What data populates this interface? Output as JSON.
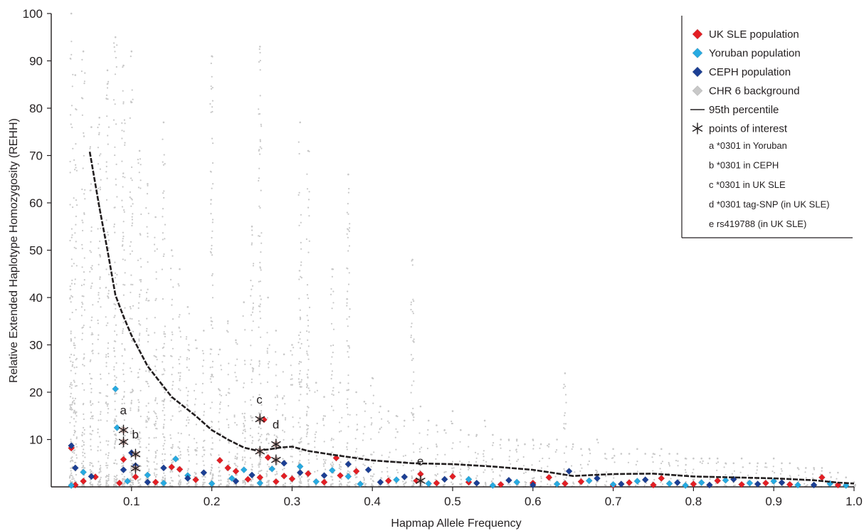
{
  "chart_data": {
    "type": "scatter",
    "title": "",
    "xlabel": "Hapmap Allele Frequency",
    "ylabel": "Relative Extended Haplotype Homozygosity (REHH)",
    "xlim": [
      0,
      1.0
    ],
    "ylim": [
      0,
      100
    ],
    "x_ticks": [
      "0.1",
      "0.2",
      "0.3",
      "0.4",
      "0.5",
      "0.6",
      "0.7",
      "0.8",
      "0.9",
      "1.0"
    ],
    "y_ticks": [
      "10",
      "20",
      "30",
      "40",
      "50",
      "60",
      "70",
      "80",
      "90",
      "100"
    ],
    "grid": false,
    "legend_position": "top-right",
    "legend": [
      {
        "label": "UK SLE population",
        "marker": "diamond",
        "color": "#e31e24"
      },
      {
        "label": "Yoruban population",
        "marker": "diamond",
        "color": "#27aae1"
      },
      {
        "label": "CEPH population",
        "marker": "diamond",
        "color": "#1c3f94"
      },
      {
        "label": "CHR 6 background",
        "marker": "diamond",
        "color": "#c8c8c8"
      },
      {
        "label": "95th percentile",
        "marker": "line",
        "color": "#231f20"
      },
      {
        "label": "points of interest",
        "marker": "asterisk",
        "color": "#231f20"
      }
    ],
    "legend_notes": [
      "a  *0301 in Yoruban",
      "b  *0301 in CEPH",
      "c  *0301 in UK SLE",
      "d  *0301 tag-SNP (in UK SLE)",
      "e  rs419788 (in UK SLE)"
    ],
    "series": [
      {
        "name": "95th percentile",
        "type": "line",
        "color": "#231f20",
        "points": [
          [
            0.048,
            70.8
          ],
          [
            0.06,
            59
          ],
          [
            0.07,
            50
          ],
          [
            0.08,
            40.5
          ],
          [
            0.09,
            36
          ],
          [
            0.1,
            32
          ],
          [
            0.12,
            25.5
          ],
          [
            0.15,
            19
          ],
          [
            0.18,
            15
          ],
          [
            0.2,
            12
          ],
          [
            0.22,
            10
          ],
          [
            0.24,
            8.3
          ],
          [
            0.255,
            7.7
          ],
          [
            0.27,
            7.9
          ],
          [
            0.285,
            8.3
          ],
          [
            0.3,
            8.5
          ],
          [
            0.32,
            7.6
          ],
          [
            0.35,
            6.8
          ],
          [
            0.4,
            5.6
          ],
          [
            0.45,
            5.0
          ],
          [
            0.5,
            4.8
          ],
          [
            0.55,
            4.3
          ],
          [
            0.6,
            3.6
          ],
          [
            0.62,
            3.1
          ],
          [
            0.65,
            2.3
          ],
          [
            0.7,
            2.7
          ],
          [
            0.75,
            2.8
          ],
          [
            0.8,
            2.2
          ],
          [
            0.85,
            2.0
          ],
          [
            0.9,
            1.8
          ],
          [
            0.95,
            1.4
          ],
          [
            0.98,
            0.9
          ],
          [
            1.0,
            0.7
          ]
        ]
      },
      {
        "name": "UK SLE population",
        "type": "scatter",
        "color": "#e31e24",
        "points": [
          [
            0.025,
            8.2
          ],
          [
            0.03,
            0.4
          ],
          [
            0.04,
            1.2
          ],
          [
            0.055,
            2.1
          ],
          [
            0.085,
            0.8
          ],
          [
            0.09,
            5.8
          ],
          [
            0.105,
            2.1
          ],
          [
            0.13,
            1.0
          ],
          [
            0.15,
            4.2
          ],
          [
            0.16,
            3.7
          ],
          [
            0.18,
            1.5
          ],
          [
            0.21,
            5.6
          ],
          [
            0.22,
            4.0
          ],
          [
            0.23,
            3.3
          ],
          [
            0.245,
            1.6
          ],
          [
            0.26,
            2.0
          ],
          [
            0.265,
            14.2
          ],
          [
            0.27,
            6.2
          ],
          [
            0.28,
            1.1
          ],
          [
            0.29,
            2.3
          ],
          [
            0.3,
            1.7
          ],
          [
            0.32,
            2.8
          ],
          [
            0.34,
            1.0
          ],
          [
            0.355,
            6.1
          ],
          [
            0.36,
            2.4
          ],
          [
            0.38,
            3.3
          ],
          [
            0.42,
            1.3
          ],
          [
            0.455,
            1.3
          ],
          [
            0.46,
            2.7
          ],
          [
            0.48,
            0.8
          ],
          [
            0.5,
            2.2
          ],
          [
            0.52,
            1.0
          ],
          [
            0.56,
            0.5
          ],
          [
            0.6,
            0.8
          ],
          [
            0.62,
            2.0
          ],
          [
            0.64,
            0.7
          ],
          [
            0.66,
            1.1
          ],
          [
            0.7,
            0.3
          ],
          [
            0.72,
            0.9
          ],
          [
            0.75,
            0.4
          ],
          [
            0.76,
            1.8
          ],
          [
            0.8,
            0.6
          ],
          [
            0.83,
            1.3
          ],
          [
            0.86,
            0.5
          ],
          [
            0.89,
            0.8
          ],
          [
            0.92,
            0.5
          ],
          [
            0.96,
            2.0
          ],
          [
            0.98,
            0.4
          ]
        ]
      },
      {
        "name": "Yoruban population",
        "type": "scatter",
        "color": "#27aae1",
        "points": [
          [
            0.025,
            0.3
          ],
          [
            0.04,
            3.1
          ],
          [
            0.08,
            20.7
          ],
          [
            0.082,
            12.5
          ],
          [
            0.095,
            1.2
          ],
          [
            0.12,
            2.5
          ],
          [
            0.14,
            0.8
          ],
          [
            0.155,
            5.9
          ],
          [
            0.17,
            2.4
          ],
          [
            0.2,
            0.7
          ],
          [
            0.225,
            1.8
          ],
          [
            0.24,
            3.6
          ],
          [
            0.26,
            0.8
          ],
          [
            0.275,
            3.8
          ],
          [
            0.31,
            4.3
          ],
          [
            0.33,
            1.1
          ],
          [
            0.35,
            3.5
          ],
          [
            0.37,
            2.2
          ],
          [
            0.385,
            0.6
          ],
          [
            0.43,
            1.5
          ],
          [
            0.47,
            0.7
          ],
          [
            0.52,
            1.6
          ],
          [
            0.55,
            0.3
          ],
          [
            0.58,
            1.0
          ],
          [
            0.63,
            0.6
          ],
          [
            0.67,
            1.3
          ],
          [
            0.7,
            0.5
          ],
          [
            0.73,
            1.2
          ],
          [
            0.77,
            0.7
          ],
          [
            0.79,
            0.3
          ],
          [
            0.81,
            0.9
          ],
          [
            0.84,
            1.4
          ],
          [
            0.87,
            0.8
          ],
          [
            0.9,
            1.2
          ],
          [
            0.93,
            0.4
          ],
          [
            0.97,
            0.7
          ],
          [
            0.99,
            0.3
          ]
        ]
      },
      {
        "name": "CEPH population",
        "type": "scatter",
        "color": "#1c3f94",
        "points": [
          [
            0.025,
            8.7
          ],
          [
            0.03,
            4.0
          ],
          [
            0.05,
            2.2
          ],
          [
            0.09,
            3.6
          ],
          [
            0.1,
            7.2
          ],
          [
            0.105,
            4.5
          ],
          [
            0.12,
            1.0
          ],
          [
            0.14,
            4.0
          ],
          [
            0.17,
            1.8
          ],
          [
            0.19,
            3.0
          ],
          [
            0.23,
            1.2
          ],
          [
            0.25,
            2.5
          ],
          [
            0.29,
            5.0
          ],
          [
            0.31,
            3.0
          ],
          [
            0.34,
            2.4
          ],
          [
            0.37,
            4.8
          ],
          [
            0.395,
            3.6
          ],
          [
            0.41,
            1.0
          ],
          [
            0.44,
            2.1
          ],
          [
            0.49,
            1.6
          ],
          [
            0.53,
            0.8
          ],
          [
            0.57,
            1.4
          ],
          [
            0.6,
            0.4
          ],
          [
            0.645,
            3.3
          ],
          [
            0.68,
            1.8
          ],
          [
            0.71,
            0.6
          ],
          [
            0.74,
            1.5
          ],
          [
            0.78,
            0.9
          ],
          [
            0.82,
            0.4
          ],
          [
            0.85,
            1.6
          ],
          [
            0.88,
            0.6
          ],
          [
            0.91,
            0.9
          ],
          [
            0.95,
            0.4
          ]
        ]
      },
      {
        "name": "points of interest",
        "type": "scatter",
        "marker": "asterisk",
        "points": [
          {
            "x": 0.09,
            "y": 12.0,
            "label": "a"
          },
          {
            "x": 0.09,
            "y": 9.5,
            "label": ""
          },
          {
            "x": 0.105,
            "y": 6.9,
            "label": "b"
          },
          {
            "x": 0.105,
            "y": 3.9,
            "label": ""
          },
          {
            "x": 0.26,
            "y": 14.3,
            "label": "c"
          },
          {
            "x": 0.26,
            "y": 7.5,
            "label": ""
          },
          {
            "x": 0.28,
            "y": 9.0,
            "label": "d"
          },
          {
            "x": 0.28,
            "y": 5.7,
            "label": ""
          },
          {
            "x": 0.46,
            "y": 1.3,
            "label": "e"
          }
        ]
      }
    ],
    "background": {
      "name": "CHR 6 background",
      "color": "#c8c8c8",
      "column_caps": [
        [
          0.025,
          100
        ],
        [
          0.03,
          87
        ],
        [
          0.04,
          92
        ],
        [
          0.05,
          76
        ],
        [
          0.06,
          78
        ],
        [
          0.07,
          88
        ],
        [
          0.08,
          95
        ],
        [
          0.09,
          89
        ],
        [
          0.1,
          92
        ],
        [
          0.11,
          71
        ],
        [
          0.12,
          64
        ],
        [
          0.13,
          57
        ],
        [
          0.14,
          77
        ],
        [
          0.15,
          50
        ],
        [
          0.16,
          46
        ],
        [
          0.17,
          38
        ],
        [
          0.18,
          31
        ],
        [
          0.19,
          33
        ],
        [
          0.2,
          91
        ],
        [
          0.21,
          29
        ],
        [
          0.22,
          35
        ],
        [
          0.23,
          31
        ],
        [
          0.24,
          39
        ],
        [
          0.25,
          55
        ],
        [
          0.26,
          93
        ],
        [
          0.27,
          40
        ],
        [
          0.28,
          33
        ],
        [
          0.29,
          28
        ],
        [
          0.3,
          30
        ],
        [
          0.31,
          77
        ],
        [
          0.32,
          71
        ],
        [
          0.33,
          22
        ],
        [
          0.34,
          19
        ],
        [
          0.35,
          46
        ],
        [
          0.36,
          22
        ],
        [
          0.37,
          66
        ],
        [
          0.38,
          20
        ],
        [
          0.39,
          18
        ],
        [
          0.4,
          23
        ],
        [
          0.41,
          17
        ],
        [
          0.42,
          16
        ],
        [
          0.43,
          15
        ],
        [
          0.44,
          14
        ],
        [
          0.45,
          48
        ],
        [
          0.46,
          17
        ],
        [
          0.47,
          14
        ],
        [
          0.48,
          13
        ],
        [
          0.49,
          12
        ],
        [
          0.5,
          16
        ],
        [
          0.51,
          12
        ],
        [
          0.52,
          11
        ],
        [
          0.53,
          11
        ],
        [
          0.54,
          14
        ],
        [
          0.55,
          11
        ],
        [
          0.56,
          10
        ],
        [
          0.57,
          10
        ],
        [
          0.58,
          10
        ],
        [
          0.59,
          9
        ],
        [
          0.6,
          10
        ],
        [
          0.61,
          9
        ],
        [
          0.62,
          9
        ],
        [
          0.63,
          10
        ],
        [
          0.64,
          24
        ],
        [
          0.65,
          9
        ],
        [
          0.66,
          8
        ],
        [
          0.67,
          8
        ],
        [
          0.68,
          10
        ],
        [
          0.69,
          7
        ],
        [
          0.7,
          8
        ],
        [
          0.71,
          7
        ],
        [
          0.72,
          7
        ],
        [
          0.73,
          8
        ],
        [
          0.74,
          7
        ],
        [
          0.75,
          7
        ],
        [
          0.76,
          8
        ],
        [
          0.77,
          7
        ],
        [
          0.78,
          7
        ],
        [
          0.79,
          6
        ],
        [
          0.8,
          6
        ],
        [
          0.81,
          6
        ],
        [
          0.82,
          6
        ],
        [
          0.83,
          6
        ],
        [
          0.84,
          5
        ],
        [
          0.85,
          5
        ],
        [
          0.86,
          6
        ],
        [
          0.87,
          5
        ],
        [
          0.88,
          5
        ],
        [
          0.89,
          5
        ],
        [
          0.9,
          6
        ],
        [
          0.91,
          5
        ],
        [
          0.92,
          5
        ],
        [
          0.93,
          4
        ],
        [
          0.94,
          4
        ],
        [
          0.95,
          4
        ],
        [
          0.96,
          4
        ],
        [
          0.97,
          3
        ],
        [
          0.98,
          3
        ],
        [
          0.99,
          2
        ],
        [
          1.0,
          1
        ]
      ]
    }
  }
}
